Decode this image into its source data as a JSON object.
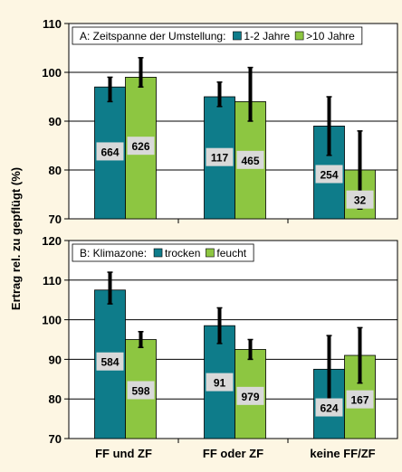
{
  "colors": {
    "background": "#fdf6e3",
    "plot_background": "#ffffff",
    "series_1": "#0e7c8a",
    "series_2": "#8dc641",
    "label_box": "#d9d9d9",
    "error_bar": "#000000"
  },
  "chart_data": {
    "type": "bar",
    "ylabel": "Ertrag rel. zu gepflügt (%)",
    "categories": [
      "FF und ZF",
      "FF oder ZF",
      "keine FF/ZF"
    ],
    "panels": [
      {
        "legend_title": "A: Zeitspanne der Umstellung:",
        "legend_position": "top",
        "ylim": [
          70,
          110
        ],
        "yticks": [
          70,
          80,
          90,
          100,
          110
        ],
        "series": [
          {
            "name": "1-2 Jahre",
            "values": [
              97,
              95,
              89
            ],
            "err_low": [
              94,
              93,
              83
            ],
            "err_high": [
              99,
              98,
              95
            ],
            "n": [
              "664",
              "117",
              "254"
            ]
          },
          {
            "name": ">10 Jahre",
            "values": [
              99,
              94,
              80
            ],
            "err_low": [
              97,
              90,
              72
            ],
            "err_high": [
              103,
              101,
              88
            ],
            "n": [
              "626",
              "465",
              "32"
            ]
          }
        ]
      },
      {
        "legend_title": "B: Klimazone:",
        "legend_position": "top",
        "ylim": [
          70,
          120
        ],
        "yticks": [
          70,
          80,
          90,
          100,
          110,
          120
        ],
        "series": [
          {
            "name": "trocken",
            "values": [
              107.5,
              98.5,
              87.5
            ],
            "err_low": [
              104,
              94,
              79
            ],
            "err_high": [
              112,
              103,
              96
            ],
            "n": [
              "584",
              "91",
              "624"
            ]
          },
          {
            "name": "feucht",
            "values": [
              95,
              92.5,
              91
            ],
            "err_low": [
              93,
              90,
              84
            ],
            "err_high": [
              97,
              95,
              98
            ],
            "n": [
              "598",
              "979",
              "167"
            ]
          }
        ]
      }
    ]
  }
}
